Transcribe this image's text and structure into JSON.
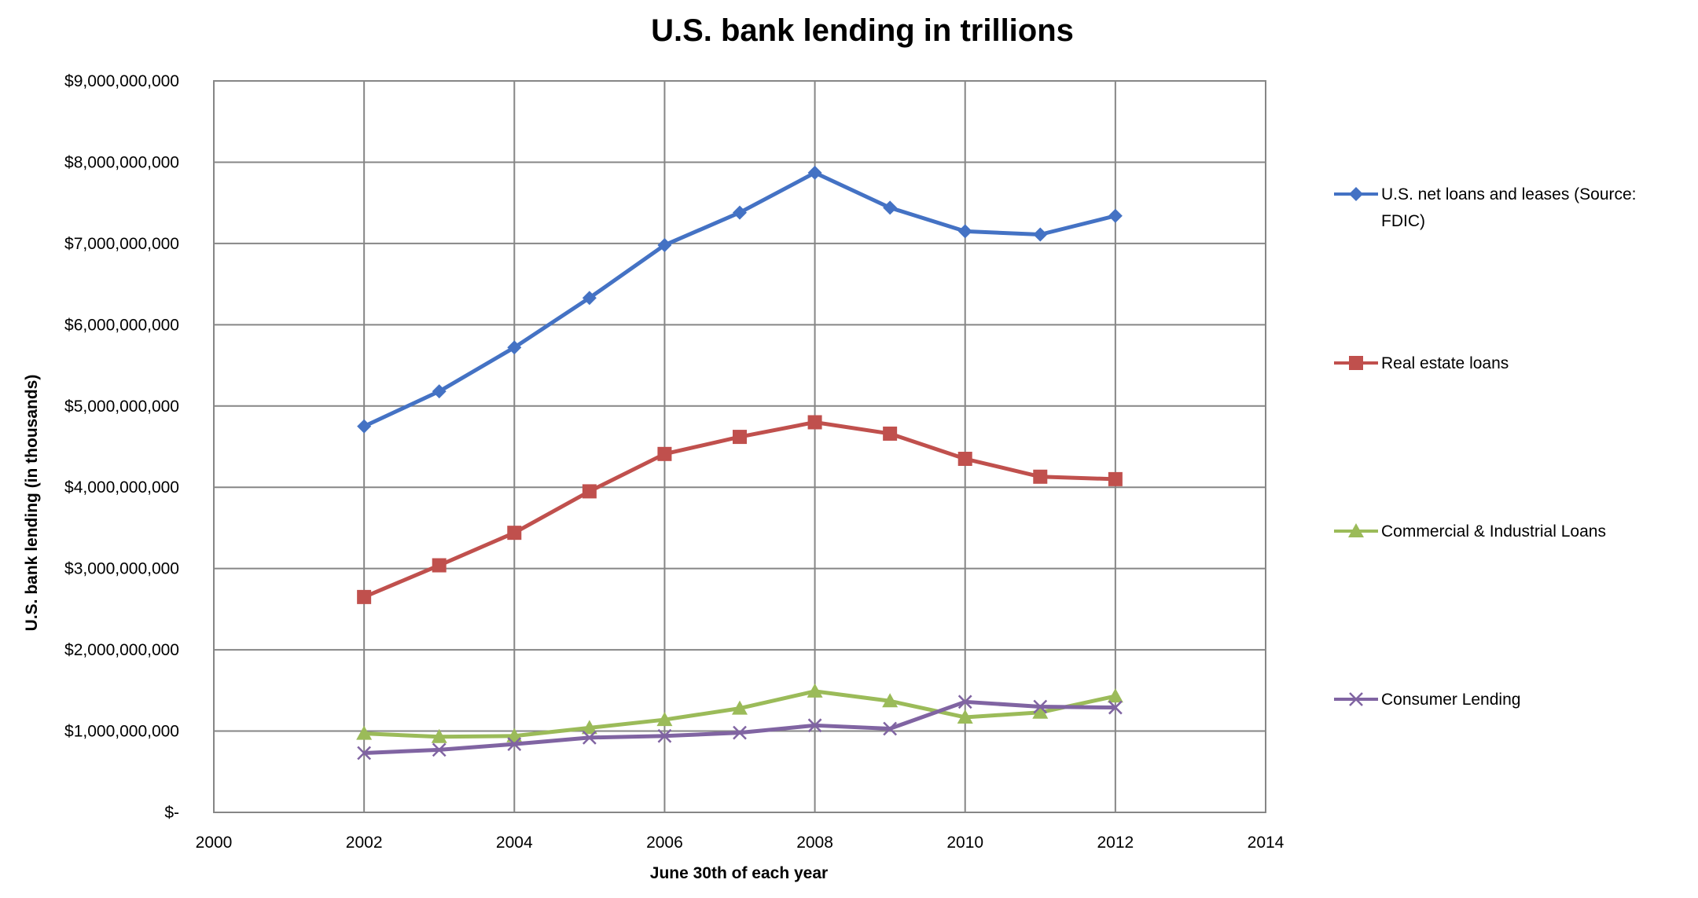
{
  "chart_data": {
    "type": "line",
    "title": "U.S. bank lending in trillions",
    "xlabel": "June 30th of each year",
    "ylabel": "U.S. bank lending (in thousands)",
    "xlim": [
      2000,
      2014
    ],
    "ylim": [
      0,
      9000000000
    ],
    "x_ticks": [
      "2000",
      "2002",
      "2004",
      "2006",
      "2008",
      "2010",
      "2012",
      "2014"
    ],
    "y_ticks": [
      "$-",
      "$1,000,000,000",
      "$2,000,000,000",
      "$3,000,000,000",
      "$4,000,000,000",
      "$5,000,000,000",
      "$6,000,000,000",
      "$7,000,000,000",
      "$8,000,000,000",
      "$9,000,000,000"
    ],
    "grid": true,
    "legend": "right",
    "x": [
      2002,
      2003,
      2004,
      2005,
      2006,
      2007,
      2008,
      2009,
      2010,
      2011,
      2012
    ],
    "series": [
      {
        "name": "U.S. net loans and leases (Source: FDIC)",
        "color": "#4472C4",
        "marker": "diamond",
        "values": [
          4750000000,
          5180000000,
          5720000000,
          6330000000,
          6980000000,
          7380000000,
          7870000000,
          7440000000,
          7150000000,
          7110000000,
          7340000000
        ]
      },
      {
        "name": "Real estate loans",
        "color": "#C0504D",
        "marker": "square",
        "values": [
          2650000000,
          3040000000,
          3440000000,
          3950000000,
          4410000000,
          4620000000,
          4800000000,
          4660000000,
          4350000000,
          4130000000,
          4100000000
        ]
      },
      {
        "name": "Commercial & Industrial Loans",
        "color": "#9BBB59",
        "marker": "triangle",
        "values": [
          970000000,
          930000000,
          940000000,
          1040000000,
          1140000000,
          1280000000,
          1490000000,
          1370000000,
          1170000000,
          1230000000,
          1430000000
        ]
      },
      {
        "name": "Consumer Lending",
        "color": "#8064A2",
        "marker": "x",
        "values": [
          730000000,
          770000000,
          840000000,
          920000000,
          940000000,
          980000000,
          1070000000,
          1030000000,
          1360000000,
          1300000000,
          1290000000
        ]
      }
    ]
  }
}
